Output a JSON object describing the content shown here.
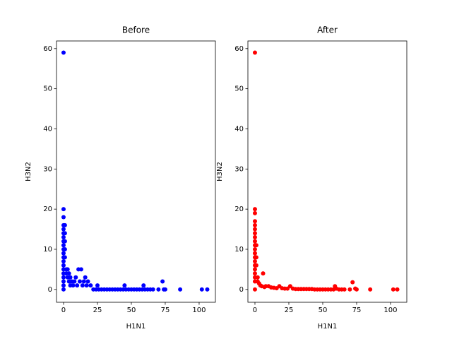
{
  "chart_data": [
    {
      "type": "scatter",
      "title": "Before",
      "x_label": "H1N1",
      "y_label": "H3N2",
      "color": "#0000ff",
      "x": [
        0,
        0,
        0,
        0,
        0,
        0,
        0,
        0,
        0,
        0,
        0,
        0,
        0,
        0,
        0,
        0,
        0,
        0,
        0,
        0,
        1,
        1,
        1,
        1,
        1,
        2,
        2,
        3,
        3,
        4,
        4,
        5,
        5,
        6,
        7,
        8,
        9,
        10,
        11,
        12,
        13,
        14,
        15,
        16,
        17,
        18,
        20,
        22,
        24,
        25,
        26,
        28,
        30,
        32,
        34,
        36,
        38,
        40,
        42,
        44,
        45,
        46,
        48,
        50,
        52,
        54,
        56,
        58,
        59,
        60,
        62,
        64,
        66,
        70,
        73,
        74,
        75,
        86,
        102,
        106
      ],
      "y": [
        59,
        20,
        18,
        16,
        15,
        14,
        13,
        12,
        11,
        10,
        9,
        8,
        7,
        6,
        5,
        4,
        3,
        2,
        1,
        0,
        16,
        14,
        12,
        10,
        8,
        5,
        4,
        3,
        5,
        2,
        4,
        1,
        3,
        2,
        1,
        2,
        3,
        1,
        5,
        2,
        5,
        1,
        2,
        3,
        1,
        2,
        1,
        0,
        0,
        1,
        0,
        0,
        0,
        0,
        0,
        0,
        0,
        0,
        0,
        0,
        1,
        0,
        0,
        0,
        0,
        0,
        0,
        0,
        1,
        0,
        0,
        0,
        0,
        0,
        2,
        0,
        0,
        0,
        0,
        0
      ],
      "xlim": [
        -5.2,
        112
      ],
      "ylim": [
        -3.2,
        61.9
      ],
      "xticks": [
        0,
        25,
        50,
        75,
        100
      ],
      "yticks": [
        0,
        10,
        20,
        30,
        40,
        50,
        60
      ]
    },
    {
      "type": "scatter",
      "title": "After",
      "x_label": "H1N1",
      "y_label": "H3N2",
      "color": "#ff0000",
      "x": [
        0,
        0,
        0,
        0,
        0,
        0,
        0,
        0,
        0,
        0,
        0,
        0,
        0,
        0,
        0,
        0,
        0,
        0,
        0,
        0,
        1,
        1,
        1,
        2,
        2,
        3,
        4,
        5,
        6,
        7,
        8,
        10,
        12,
        14,
        16,
        18,
        20,
        22,
        24,
        26,
        28,
        30,
        32,
        34,
        36,
        38,
        40,
        42,
        44,
        46,
        48,
        50,
        52,
        54,
        56,
        58,
        59,
        60,
        62,
        64,
        66,
        70,
        72,
        74,
        75,
        85,
        102,
        105
      ],
      "y": [
        59,
        20,
        19,
        17,
        16,
        15,
        14,
        13,
        12,
        11,
        10,
        9,
        8,
        7,
        6,
        5,
        4,
        3,
        2,
        0,
        11,
        8,
        6,
        3,
        2,
        1.5,
        1,
        0.8,
        4,
        0.6,
        0.8,
        0.8,
        0.5,
        0.4,
        0.3,
        0.8,
        0.3,
        0.2,
        0.2,
        0.8,
        0.2,
        0.1,
        0.1,
        0.1,
        0.1,
        0.1,
        0.1,
        0.1,
        0,
        0,
        0,
        0,
        0,
        0,
        0,
        0,
        0.8,
        0.2,
        0,
        0,
        0,
        0,
        1.8,
        0.2,
        0,
        0,
        0,
        0
      ],
      "xlim": [
        -5.2,
        112
      ],
      "ylim": [
        -3.2,
        61.9
      ],
      "xticks": [
        0,
        25,
        50,
        75,
        100
      ],
      "yticks": [
        0,
        10,
        20,
        30,
        40,
        50,
        60
      ]
    }
  ]
}
